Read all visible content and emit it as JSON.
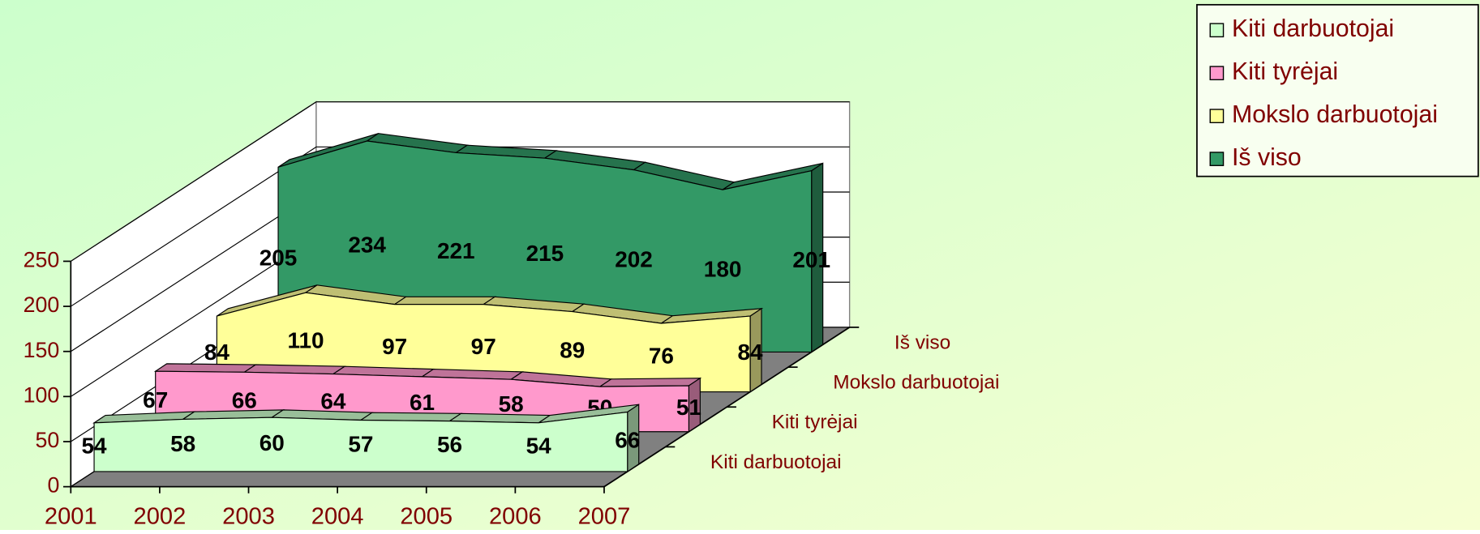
{
  "chart_data": {
    "type": "area",
    "categories": [
      "2001",
      "2002",
      "2003",
      "2004",
      "2005",
      "2006",
      "2007"
    ],
    "series": [
      {
        "name": "Kiti darbuotojai",
        "color": "#ccffcc",
        "values": [
          54,
          58,
          60,
          57,
          56,
          54,
          66
        ]
      },
      {
        "name": "Kiti tyrėjai",
        "color": "#ff99cc",
        "values": [
          67,
          66,
          64,
          61,
          58,
          50,
          51
        ]
      },
      {
        "name": "Mokslo darbuotojai",
        "color": "#ffff99",
        "values": [
          84,
          110,
          97,
          97,
          89,
          76,
          84
        ]
      },
      {
        "name": "Iš viso",
        "color": "#339966",
        "values": [
          205,
          234,
          221,
          215,
          202,
          180,
          201
        ]
      }
    ],
    "ylim": [
      0,
      250
    ],
    "yticks": [
      0,
      50,
      100,
      150,
      200,
      250
    ],
    "grid": true,
    "legend": "top-right"
  }
}
